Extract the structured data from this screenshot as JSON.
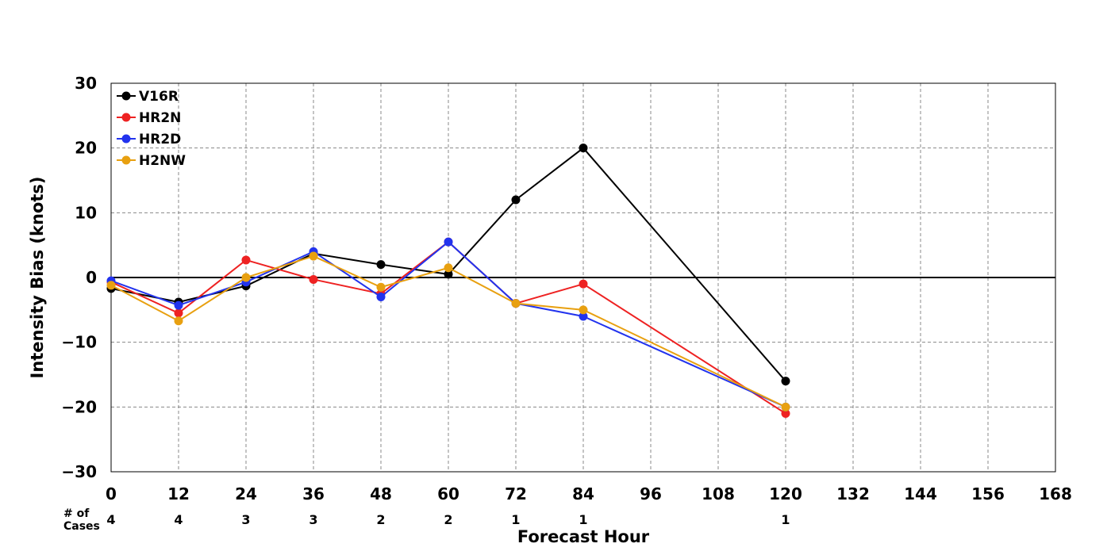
{
  "chart_data": {
    "type": "line",
    "title": "",
    "xlabel": "Forecast Hour",
    "ylabel": "Intensity Bias (knots)",
    "xlim": [
      0,
      168
    ],
    "ylim": [
      -30,
      30
    ],
    "x_ticks": [
      0,
      12,
      24,
      36,
      48,
      60,
      72,
      84,
      96,
      108,
      120,
      132,
      144,
      156,
      168
    ],
    "y_ticks": [
      30,
      20,
      10,
      0,
      -10,
      -20,
      -30
    ],
    "y_tick_labels": [
      "30",
      "20",
      "10",
      "0",
      "−10",
      "−20",
      "−30"
    ],
    "grid": true,
    "legend_position": "top-left",
    "zero_line": true,
    "series": [
      {
        "name": "V16R",
        "color": "#000000",
        "points": [
          [
            0,
            -1.7
          ],
          [
            12,
            -3.8
          ],
          [
            24,
            -1.3
          ],
          [
            36,
            3.7
          ],
          [
            48,
            2.0
          ],
          [
            60,
            0.5
          ],
          [
            72,
            12.0
          ],
          [
            84,
            20.0
          ],
          [
            120,
            -16.0
          ]
        ]
      },
      {
        "name": "HR2N",
        "color": "#ee2222",
        "points": [
          [
            0,
            -0.7
          ],
          [
            12,
            -5.5
          ],
          [
            24,
            2.7
          ],
          [
            36,
            -0.3
          ],
          [
            48,
            -2.5
          ],
          [
            60,
            5.5
          ],
          [
            72,
            -4.0
          ],
          [
            84,
            -1.0
          ],
          [
            120,
            -21.0
          ]
        ]
      },
      {
        "name": "HR2D",
        "color": "#2233ee",
        "points": [
          [
            0,
            -0.5
          ],
          [
            12,
            -4.3
          ],
          [
            24,
            -0.7
          ],
          [
            36,
            4.0
          ],
          [
            48,
            -3.0
          ],
          [
            60,
            5.5
          ],
          [
            72,
            -4.0
          ],
          [
            84,
            -6.0
          ],
          [
            120,
            -20.0
          ]
        ]
      },
      {
        "name": "H2NW",
        "color": "#e8a010",
        "points": [
          [
            0,
            -1.2
          ],
          [
            12,
            -6.7
          ],
          [
            24,
            0.0
          ],
          [
            36,
            3.3
          ],
          [
            48,
            -1.5
          ],
          [
            60,
            1.5
          ],
          [
            72,
            -4.0
          ],
          [
            84,
            -5.0
          ],
          [
            120,
            -20.0
          ]
        ]
      }
    ],
    "cases": {
      "label_line1": "# of",
      "label_line2": "Cases",
      "hours": [
        0,
        12,
        24,
        36,
        48,
        60,
        72,
        84,
        120
      ],
      "counts": [
        "4",
        "4",
        "3",
        "3",
        "2",
        "2",
        "1",
        "1",
        "1"
      ]
    }
  }
}
